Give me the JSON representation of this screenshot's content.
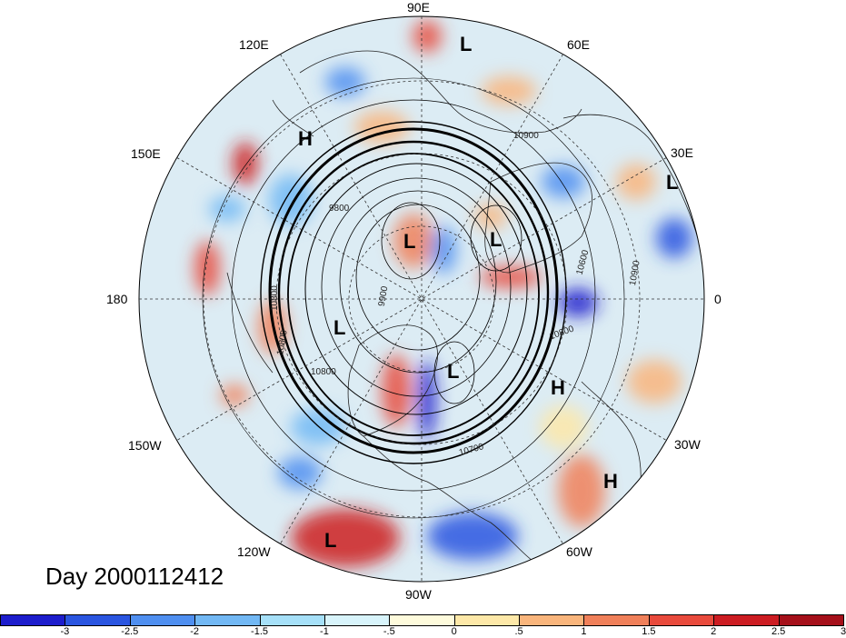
{
  "map": {
    "title": "Day 2000112412",
    "longitude_labels": {
      "lon_90e": "90E",
      "lon_60e": "60E",
      "lon_30e": "30E",
      "lon_0": "0",
      "lon_30w": "30W",
      "lon_60w": "60W",
      "lon_90w": "90W",
      "lon_120w": "120W",
      "lon_150w": "150W",
      "lon_180": "180",
      "lon_150e": "150E",
      "lon_120e": "120E"
    },
    "pressure_systems": [
      {
        "type": "L",
        "label": "L"
      },
      {
        "type": "H",
        "label": "H"
      },
      {
        "type": "L",
        "label": "L"
      },
      {
        "type": "L",
        "label": "L"
      },
      {
        "type": "L",
        "label": "L"
      },
      {
        "type": "L",
        "label": "L"
      },
      {
        "type": "L",
        "label": "L"
      },
      {
        "type": "H",
        "label": "H"
      },
      {
        "type": "H",
        "label": "H"
      },
      {
        "type": "L",
        "label": "L"
      }
    ],
    "contour_labels": [
      "10900",
      "9800",
      "10600",
      "10900",
      "10800",
      "10800",
      "10800",
      "10700",
      "10800",
      "9900"
    ],
    "colorbar": {
      "colors": [
        "#1d1dcc",
        "#2a55e0",
        "#4f8ff0",
        "#72b8f4",
        "#a6e0f8",
        "#d8f4fb",
        "#fefbdc",
        "#fde8a8",
        "#f9b57c",
        "#f0805a",
        "#e84a3c",
        "#cc1c22",
        "#a5101a"
      ],
      "tick_labels": [
        "-3",
        "-2.5",
        "-2",
        "-1.5",
        "-1",
        "-.5",
        "0",
        ".5",
        "1",
        "1.5",
        "2",
        "2.5",
        "3"
      ]
    }
  }
}
